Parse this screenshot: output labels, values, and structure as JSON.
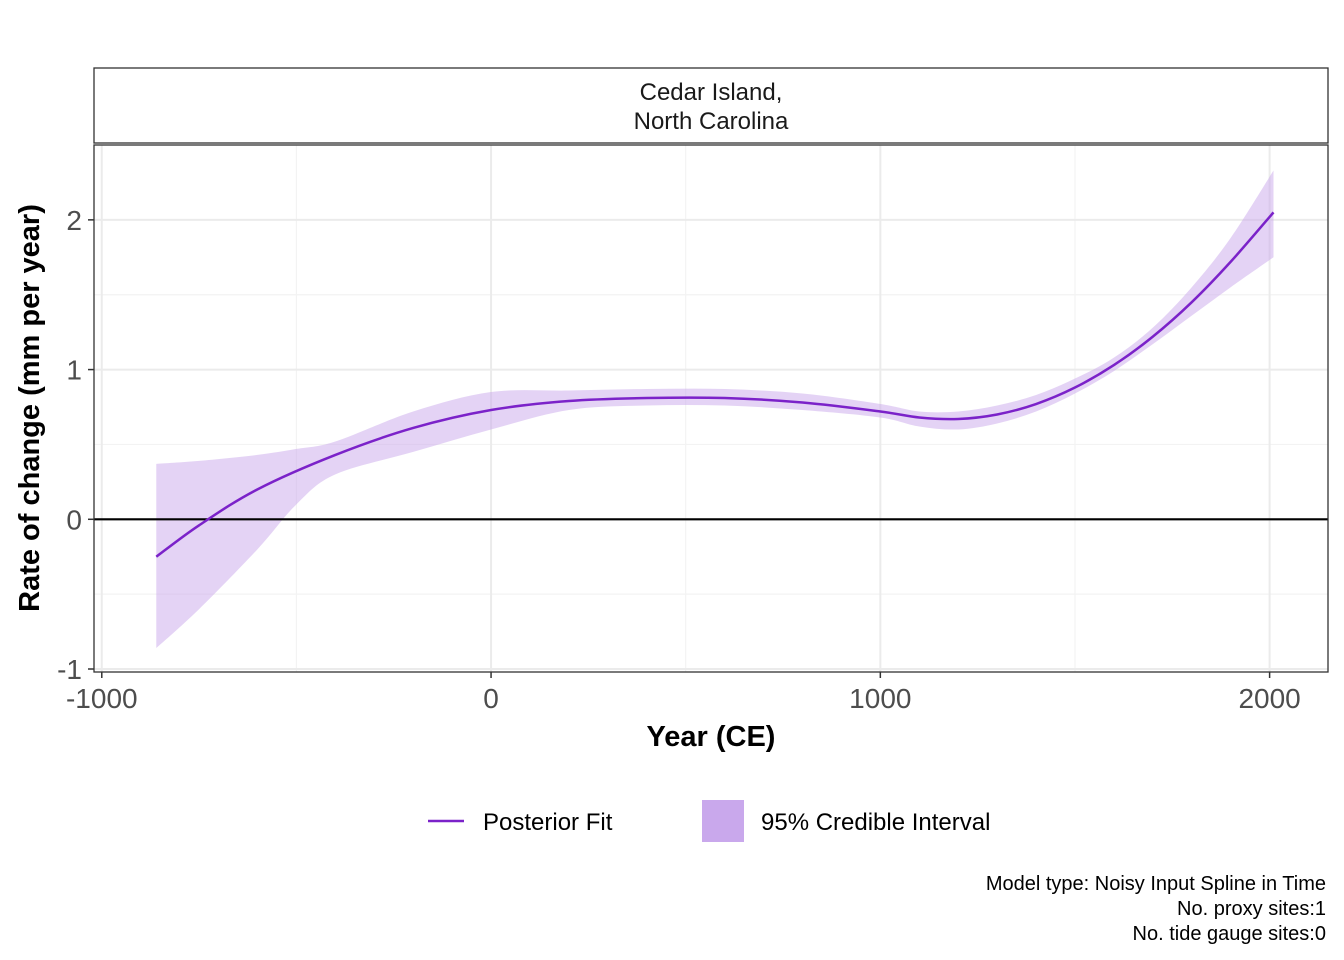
{
  "chart_data": {
    "type": "line",
    "facet_title": [
      "Cedar Island,",
      "North Carolina"
    ],
    "xlabel": "Year (CE)",
    "ylabel": "Rate of change (mm per year)",
    "xlim": [
      -1020,
      2150
    ],
    "ylim": [
      -1.02,
      2.5
    ],
    "x_ticks": [
      -1000,
      0,
      1000,
      2000
    ],
    "x_tick_labels": [
      "-1000",
      "0",
      "1000",
      "2000"
    ],
    "y_ticks": [
      -1,
      0,
      1,
      2
    ],
    "y_tick_labels": [
      "-1",
      "0",
      "1",
      "2"
    ],
    "grid": true,
    "reference_line_y": 0,
    "legend_position": "bottom",
    "series": [
      {
        "name": "Posterior Fit",
        "color": "#7B22C9",
        "x": [
          -860,
          -750,
          -600,
          -400,
          -200,
          0,
          200,
          400,
          600,
          800,
          1000,
          1100,
          1200,
          1300,
          1400,
          1500,
          1600,
          1700,
          1800,
          1900,
          2010
        ],
        "y": [
          -0.25,
          -0.04,
          0.2,
          0.43,
          0.61,
          0.73,
          0.79,
          0.81,
          0.81,
          0.78,
          0.72,
          0.68,
          0.67,
          0.7,
          0.77,
          0.88,
          1.03,
          1.22,
          1.45,
          1.72,
          2.05
        ]
      },
      {
        "name": "95% Credible Interval",
        "color": "#C9A8EC",
        "x": [
          -860,
          -750,
          -600,
          -500,
          -400,
          -200,
          0,
          200,
          400,
          600,
          800,
          1000,
          1100,
          1200,
          1300,
          1400,
          1500,
          1600,
          1700,
          1800,
          1900,
          2010
        ],
        "lower": [
          -0.86,
          -0.6,
          -0.2,
          0.1,
          0.3,
          0.45,
          0.6,
          0.73,
          0.76,
          0.76,
          0.73,
          0.68,
          0.62,
          0.6,
          0.64,
          0.72,
          0.84,
          0.99,
          1.17,
          1.36,
          1.55,
          1.75
        ],
        "upper": [
          0.37,
          0.39,
          0.43,
          0.47,
          0.52,
          0.72,
          0.85,
          0.86,
          0.87,
          0.87,
          0.84,
          0.77,
          0.72,
          0.72,
          0.76,
          0.83,
          0.94,
          1.08,
          1.28,
          1.55,
          1.88,
          2.33
        ]
      }
    ]
  },
  "legend": {
    "fit_label": "Posterior Fit",
    "ci_label": "95% Credible Interval"
  },
  "caption": {
    "lines": [
      "Model type: Noisy Input Spline in Time",
      "No. proxy sites:1",
      "No. tide gauge sites:0"
    ]
  },
  "colors": {
    "fit": "#7B22C9",
    "ribbon": "#C9A8EC",
    "ribbon_opacity": 0.5,
    "grid_major": "#EBEBEB",
    "grid_minor": "#F3F3F3",
    "panel_border": "#333333"
  }
}
